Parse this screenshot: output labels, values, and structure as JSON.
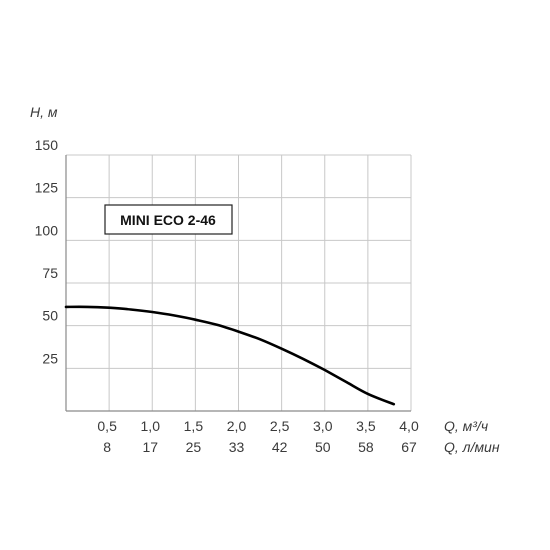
{
  "chart_data": {
    "type": "line",
    "title": "",
    "annotation": "MINI ECO 2-46",
    "ylabel": "H, м",
    "xlabel": "Q, м³/ч",
    "xlabel_secondary": "Q, л/мин",
    "xlim": [
      0,
      4.0
    ],
    "ylim": [
      0,
      150
    ],
    "grid": true,
    "x_ticks": [
      "0,5",
      "1,0",
      "1,5",
      "2,0",
      "2,5",
      "3,0",
      "3,5",
      "4,0"
    ],
    "x_ticks_secondary": [
      "8",
      "17",
      "25",
      "33",
      "42",
      "50",
      "58",
      "67"
    ],
    "y_ticks": [
      "25",
      "50",
      "75",
      "100",
      "125",
      "150"
    ],
    "series": [
      {
        "x": [
          0,
          0.25,
          0.5,
          0.75,
          1.0,
          1.25,
          1.5,
          1.75,
          2.0,
          2.25,
          2.5,
          2.75,
          3.0,
          3.25,
          3.5,
          3.8
        ],
        "y": [
          61,
          61,
          60.5,
          59.5,
          58,
          56,
          53.5,
          50.5,
          46.5,
          42,
          36.5,
          30.5,
          24,
          17,
          10,
          4
        ]
      }
    ],
    "colors": {
      "line": "#000000",
      "grid": "#c8c8c8",
      "axis": "#8a8a8a"
    }
  }
}
